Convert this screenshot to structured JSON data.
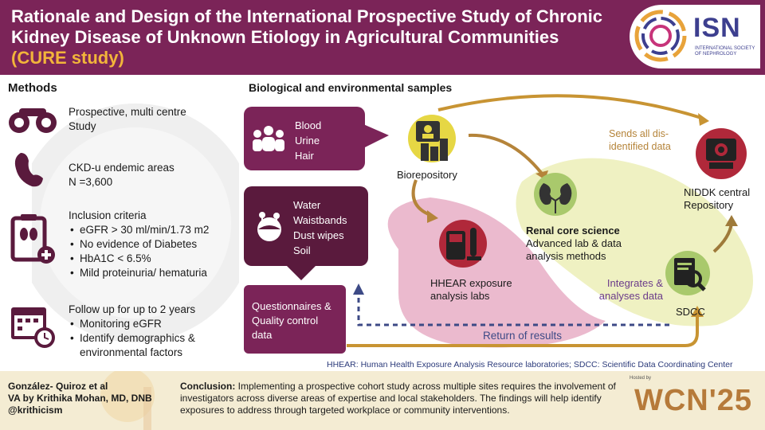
{
  "header": {
    "title_main": "Rationale and Design of the International Prospective Study of Chronic Kidney Disease of Unknown Etiology in Agricultural Communities ",
    "title_highlight": "(CURE study)",
    "logo_text": "ISN",
    "logo_subtext": "INTERNATIONAL SOCIETY OF NEPHROLOGY"
  },
  "methods": {
    "title": "Methods",
    "item1": {
      "line1": "Prospective, multi centre",
      "line2": "Study"
    },
    "item2": {
      "line1": "CKD-u endemic areas",
      "line2": "N =3,600"
    },
    "item3": {
      "title": "Inclusion criteria",
      "bullets": [
        "eGFR > 30 ml/min/1.73 m2",
        "No evidence of Diabetes",
        "HbA1C < 6.5%",
        "Mild proteinuria/ hematuria"
      ]
    },
    "item4": {
      "title": "Follow up for up to 2 years",
      "bullets": [
        "Monitoring eGFR",
        "Identify demographics &",
        "environmental factors"
      ]
    }
  },
  "samples": {
    "title": "Biological and environmental samples",
    "bio": [
      "Blood",
      "Urine",
      "Hair"
    ],
    "env": [
      "Water",
      "Waistbands",
      "Dust wipes",
      "Soil"
    ],
    "questionnaire": "Questionnaires & Quality control data"
  },
  "flow": {
    "biorepository": "Biorepository",
    "sends": "Sends all dis-identified data",
    "niddk": "NIDDK central Repository",
    "renal_title": "Renal core science",
    "renal_desc": "Advanced lab & data analysis methods",
    "hhear": "HHEAR exposure analysis labs",
    "integrates": "Integrates & analyses data",
    "sdcc": "SDCC",
    "return": "Return of results"
  },
  "abbrev": "HHEAR: Human Health Exposure Analysis Resource laboratories; SDCC: Scientific Data Coordinating Center",
  "footer": {
    "author1": "González- Quiroz et al",
    "author2": "VA by Krithika Mohan, MD, DNB",
    "author3": "@krithicism",
    "conclusion_label": "Conclusion:",
    "conclusion": " Implementing a prospective cohort study across multiple sites requires the involvement of investigators across diverse areas of expertise and local stakeholders. The findings will help identify exposures to address through targeted workplace or community interventions.",
    "hosted": "Hosted by",
    "wcn": "WCN'25"
  },
  "colors": {
    "plum": "#7b2458",
    "dark_plum": "#5a1a3d",
    "gold": "#c89433",
    "pink": "#e9b3c9",
    "green": "#eef0bf"
  }
}
